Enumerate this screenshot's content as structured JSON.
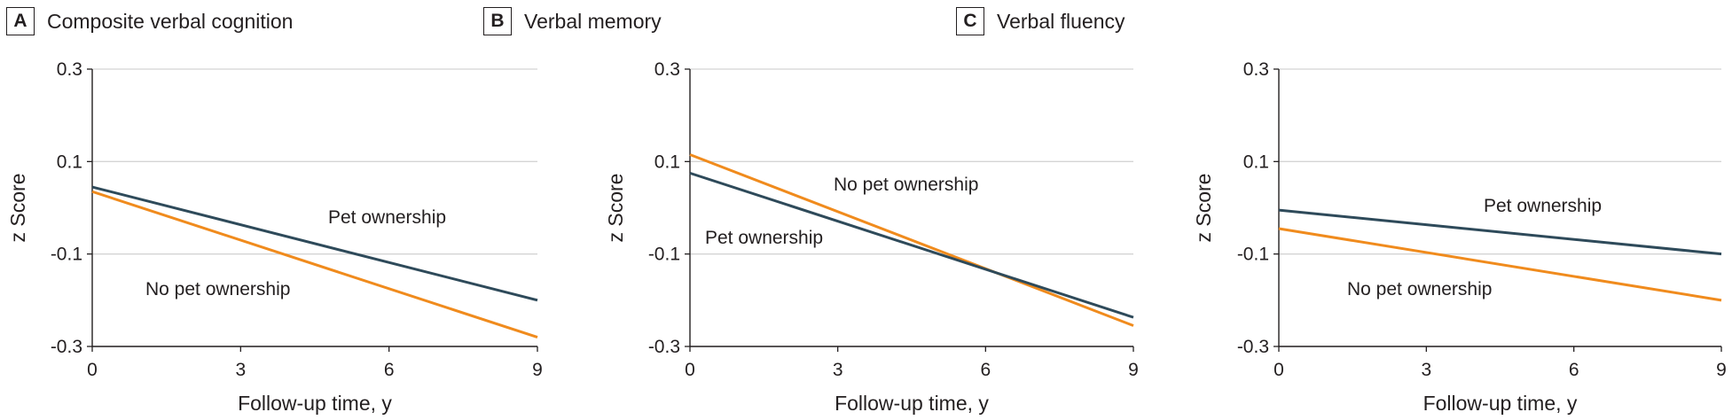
{
  "colors": {
    "pet": "#2e4a5a",
    "no_pet": "#f08b1d",
    "grid": "#d4d4d4",
    "axis": "#231f20"
  },
  "chart_data": [
    {
      "type": "line",
      "panel": "A",
      "title": "Composite verbal cognition",
      "xlabel": "Follow-up time, y",
      "ylabel": "z Score",
      "xlim": [
        0,
        9
      ],
      "ylim": [
        -0.3,
        0.3
      ],
      "xticks": [
        "0",
        "3",
        "6",
        "9"
      ],
      "yticks": [
        "0.3",
        "0.1",
        "-0.1",
        "-0.3"
      ],
      "grid": "horizontal",
      "series": [
        {
          "name": "Pet ownership",
          "x": [
            0,
            9
          ],
          "y": [
            0.045,
            -0.2
          ]
        },
        {
          "name": "No pet ownership",
          "x": [
            0,
            9
          ],
          "y": [
            0.035,
            -0.28
          ]
        }
      ],
      "annotations": {
        "pet": "Pet ownership",
        "no_pet": "No pet ownership"
      }
    },
    {
      "type": "line",
      "panel": "B",
      "title": "Verbal memory",
      "xlabel": "Follow-up time, y",
      "ylabel": "z Score",
      "xlim": [
        0,
        9
      ],
      "ylim": [
        -0.3,
        0.3
      ],
      "xticks": [
        "0",
        "3",
        "6",
        "9"
      ],
      "yticks": [
        "0.3",
        "0.1",
        "-0.1",
        "-0.3"
      ],
      "grid": "horizontal",
      "series": [
        {
          "name": "Pet ownership",
          "x": [
            0,
            9
          ],
          "y": [
            0.075,
            -0.237
          ]
        },
        {
          "name": "No pet ownership",
          "x": [
            0,
            9
          ],
          "y": [
            0.115,
            -0.255
          ]
        }
      ],
      "annotations": {
        "pet": "Pet ownership",
        "no_pet": "No pet ownership"
      }
    },
    {
      "type": "line",
      "panel": "C",
      "title": "Verbal fluency",
      "xlabel": "Follow-up time, y",
      "ylabel": "z Score",
      "xlim": [
        0,
        9
      ],
      "ylim": [
        -0.3,
        0.3
      ],
      "xticks": [
        "0",
        "3",
        "6",
        "9"
      ],
      "yticks": [
        "0.3",
        "0.1",
        "-0.1",
        "-0.3"
      ],
      "grid": "horizontal",
      "series": [
        {
          "name": "Pet ownership",
          "x": [
            0,
            9
          ],
          "y": [
            -0.005,
            -0.1
          ]
        },
        {
          "name": "No pet ownership",
          "x": [
            0,
            9
          ],
          "y": [
            -0.045,
            -0.2
          ]
        }
      ],
      "annotations": {
        "pet": "Pet ownership",
        "no_pet": "No pet ownership"
      }
    }
  ]
}
